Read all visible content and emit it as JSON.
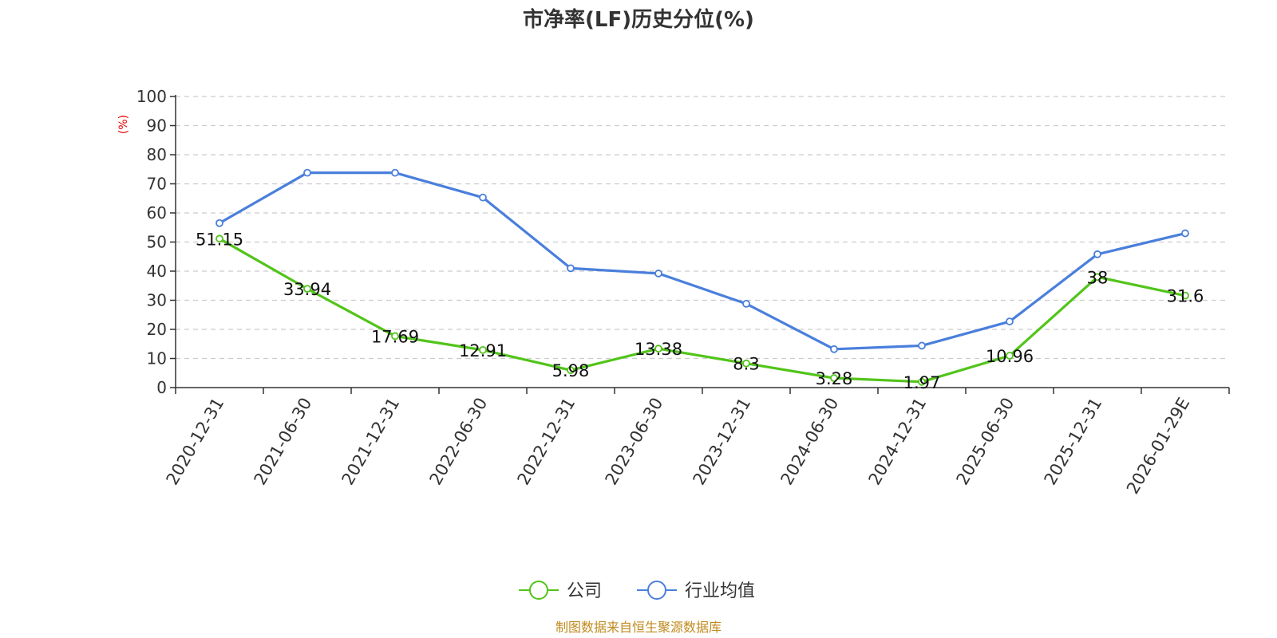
{
  "chart_data": {
    "type": "line",
    "title": "市净率(LF)历史分位(%)",
    "ylabel": "(%)",
    "ylim": [
      0,
      100
    ],
    "yticks": [
      0,
      10,
      20,
      30,
      40,
      50,
      60,
      70,
      80,
      90,
      100
    ],
    "grid": true,
    "legend_position": "bottom",
    "categories": [
      "2020-12-31",
      "2021-06-30",
      "2021-12-31",
      "2022-06-30",
      "2022-12-31",
      "2023-06-30",
      "2023-12-31",
      "2024-06-30",
      "2024-12-31",
      "2025-06-30",
      "2025-12-31",
      "2026-01-29E"
    ],
    "series": [
      {
        "name": "公司",
        "color": "#52c41a",
        "values": [
          51.15,
          33.94,
          17.69,
          12.91,
          5.98,
          13.38,
          8.3,
          3.28,
          1.97,
          10.96,
          38,
          31.6
        ],
        "labels": [
          "51.15",
          "33.94",
          "17.69",
          "12.91",
          "5.98",
          "13.38",
          "8.3",
          "3.28",
          "1.97",
          "10.96",
          "38",
          "31.6"
        ],
        "show_labels": true
      },
      {
        "name": "行业均值",
        "color": "#4a7fdc",
        "values": [
          56.5,
          73.8,
          73.8,
          65.3,
          41,
          39.2,
          28.8,
          13.2,
          14.4,
          22.7,
          45.8,
          53
        ],
        "show_labels": false
      }
    ],
    "source": "制图数据来自恒生聚源数据库"
  }
}
